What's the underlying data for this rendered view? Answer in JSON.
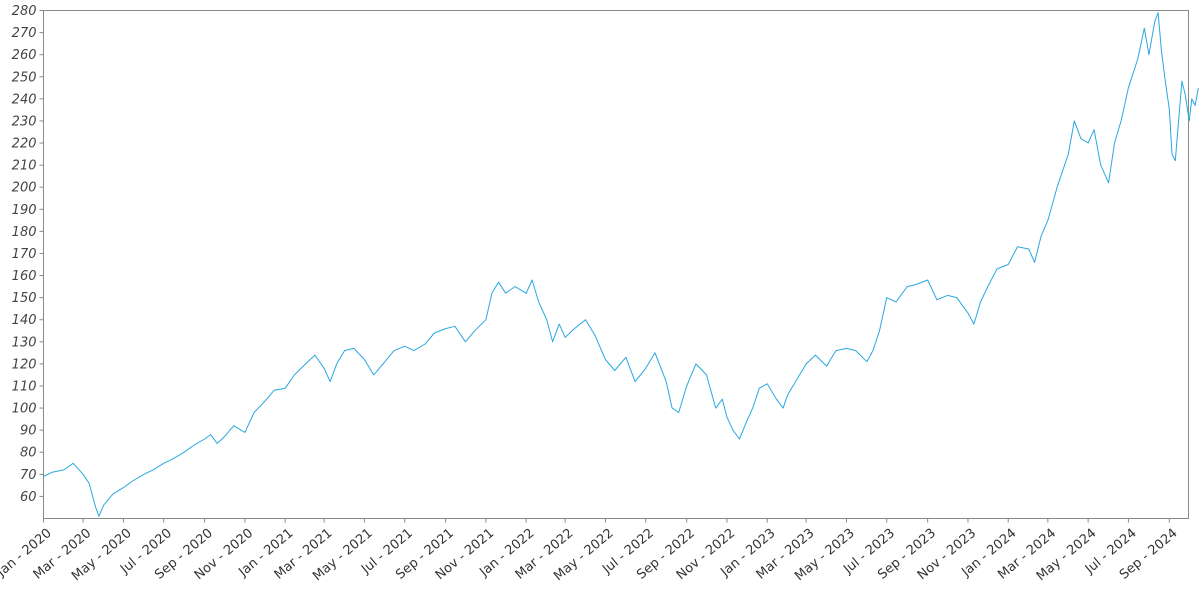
{
  "chart_data": {
    "type": "line",
    "title": "",
    "xlabel": "",
    "ylabel": "",
    "x_range": [
      "2020-01-01",
      "2024-09-30"
    ],
    "ylim": [
      50,
      280
    ],
    "grid": false,
    "series": [
      {
        "color": "#29a8e0",
        "points": [
          [
            "2020-01-01",
            69
          ],
          [
            "2020-01-15",
            71
          ],
          [
            "2020-02-01",
            72
          ],
          [
            "2020-02-15",
            75
          ],
          [
            "2020-03-01",
            70
          ],
          [
            "2020-03-10",
            66
          ],
          [
            "2020-03-20",
            55
          ],
          [
            "2020-03-25",
            51
          ],
          [
            "2020-04-01",
            56
          ],
          [
            "2020-04-15",
            61
          ],
          [
            "2020-05-01",
            64
          ],
          [
            "2020-05-15",
            67
          ],
          [
            "2020-06-01",
            70
          ],
          [
            "2020-06-15",
            72
          ],
          [
            "2020-07-01",
            75
          ],
          [
            "2020-07-15",
            77
          ],
          [
            "2020-08-01",
            80
          ],
          [
            "2020-08-15",
            83
          ],
          [
            "2020-09-01",
            86
          ],
          [
            "2020-09-10",
            88
          ],
          [
            "2020-09-20",
            84
          ],
          [
            "2020-10-01",
            87
          ],
          [
            "2020-10-15",
            92
          ],
          [
            "2020-11-01",
            89
          ],
          [
            "2020-11-15",
            98
          ],
          [
            "2020-12-01",
            103
          ],
          [
            "2020-12-15",
            108
          ],
          [
            "2021-01-01",
            109
          ],
          [
            "2021-01-15",
            115
          ],
          [
            "2021-02-01",
            120
          ],
          [
            "2021-02-15",
            124
          ],
          [
            "2021-03-01",
            118
          ],
          [
            "2021-03-10",
            112
          ],
          [
            "2021-03-20",
            120
          ],
          [
            "2021-04-01",
            126
          ],
          [
            "2021-04-15",
            127
          ],
          [
            "2021-05-01",
            122
          ],
          [
            "2021-05-15",
            115
          ],
          [
            "2021-06-01",
            121
          ],
          [
            "2021-06-15",
            126
          ],
          [
            "2021-07-01",
            128
          ],
          [
            "2021-07-15",
            126
          ],
          [
            "2021-08-01",
            129
          ],
          [
            "2021-08-15",
            134
          ],
          [
            "2021-09-01",
            136
          ],
          [
            "2021-09-15",
            137
          ],
          [
            "2021-10-01",
            130
          ],
          [
            "2021-10-15",
            135
          ],
          [
            "2021-11-01",
            140
          ],
          [
            "2021-11-10",
            152
          ],
          [
            "2021-11-20",
            157
          ],
          [
            "2021-12-01",
            152
          ],
          [
            "2021-12-15",
            155
          ],
          [
            "2022-01-01",
            152
          ],
          [
            "2022-01-10",
            158
          ],
          [
            "2022-01-20",
            148
          ],
          [
            "2022-02-01",
            140
          ],
          [
            "2022-02-10",
            130
          ],
          [
            "2022-02-20",
            138
          ],
          [
            "2022-03-01",
            132
          ],
          [
            "2022-03-15",
            136
          ],
          [
            "2022-04-01",
            140
          ],
          [
            "2022-04-15",
            133
          ],
          [
            "2022-05-01",
            122
          ],
          [
            "2022-05-15",
            117
          ],
          [
            "2022-06-01",
            123
          ],
          [
            "2022-06-15",
            112
          ],
          [
            "2022-07-01",
            118
          ],
          [
            "2022-07-15",
            125
          ],
          [
            "2022-08-01",
            112
          ],
          [
            "2022-08-10",
            100
          ],
          [
            "2022-08-20",
            98
          ],
          [
            "2022-09-01",
            110
          ],
          [
            "2022-09-15",
            120
          ],
          [
            "2022-10-01",
            115
          ],
          [
            "2022-10-15",
            100
          ],
          [
            "2022-10-25",
            104
          ],
          [
            "2022-11-01",
            96
          ],
          [
            "2022-11-10",
            90
          ],
          [
            "2022-11-20",
            86
          ],
          [
            "2022-12-01",
            94
          ],
          [
            "2022-12-10",
            100
          ],
          [
            "2022-12-20",
            109
          ],
          [
            "2023-01-01",
            111
          ],
          [
            "2023-01-15",
            104
          ],
          [
            "2023-01-25",
            100
          ],
          [
            "2023-02-01",
            106
          ],
          [
            "2023-02-15",
            113
          ],
          [
            "2023-03-01",
            120
          ],
          [
            "2023-03-15",
            124
          ],
          [
            "2023-04-01",
            119
          ],
          [
            "2023-04-15",
            126
          ],
          [
            "2023-05-01",
            127
          ],
          [
            "2023-05-15",
            126
          ],
          [
            "2023-06-01",
            121
          ],
          [
            "2023-06-10",
            126
          ],
          [
            "2023-06-20",
            135
          ],
          [
            "2023-07-01",
            150
          ],
          [
            "2023-07-15",
            148
          ],
          [
            "2023-08-01",
            155
          ],
          [
            "2023-08-15",
            156
          ],
          [
            "2023-09-01",
            158
          ],
          [
            "2023-09-15",
            149
          ],
          [
            "2023-10-01",
            151
          ],
          [
            "2023-10-15",
            150
          ],
          [
            "2023-11-01",
            143
          ],
          [
            "2023-11-10",
            138
          ],
          [
            "2023-11-20",
            148
          ],
          [
            "2023-12-01",
            155
          ],
          [
            "2023-12-15",
            163
          ],
          [
            "2024-01-01",
            165
          ],
          [
            "2024-01-15",
            173
          ],
          [
            "2024-02-01",
            172
          ],
          [
            "2024-02-10",
            166
          ],
          [
            "2024-02-20",
            178
          ],
          [
            "2024-03-01",
            185
          ],
          [
            "2024-03-15",
            200
          ],
          [
            "2024-04-01",
            215
          ],
          [
            "2024-04-10",
            230
          ],
          [
            "2024-04-20",
            222
          ],
          [
            "2024-05-01",
            220
          ],
          [
            "2024-05-10",
            226
          ],
          [
            "2024-05-20",
            210
          ],
          [
            "2024-06-01",
            202
          ],
          [
            "2024-06-10",
            220
          ],
          [
            "2024-06-20",
            230
          ],
          [
            "2024-07-01",
            245
          ],
          [
            "2024-07-15",
            258
          ],
          [
            "2024-07-25",
            272
          ],
          [
            "2024-08-01",
            260
          ],
          [
            "2024-08-10",
            275
          ],
          [
            "2024-08-15",
            279
          ],
          [
            "2024-08-20",
            262
          ],
          [
            "2024-08-25",
            250
          ],
          [
            "2024-09-01",
            235
          ],
          [
            "2024-09-05",
            215
          ],
          [
            "2024-09-10",
            212
          ],
          [
            "2024-09-15",
            230
          ],
          [
            "2024-09-20",
            248
          ],
          [
            "2024-09-25",
            242
          ],
          [
            "2024-10-01",
            230
          ],
          [
            "2024-10-05",
            240
          ],
          [
            "2024-10-10",
            237
          ],
          [
            "2024-10-15",
            245
          ]
        ]
      }
    ],
    "y_ticks": [
      60,
      70,
      80,
      90,
      100,
      110,
      120,
      130,
      140,
      150,
      160,
      170,
      180,
      190,
      200,
      210,
      220,
      230,
      240,
      250,
      260,
      270,
      280
    ],
    "x_ticks": [
      {
        "label": "Jan - 2020",
        "date": "2020-01-01"
      },
      {
        "label": "Mar - 2020",
        "date": "2020-03-01"
      },
      {
        "label": "May - 2020",
        "date": "2020-05-01"
      },
      {
        "label": "Jul - 2020",
        "date": "2020-07-01"
      },
      {
        "label": "Sep - 2020",
        "date": "2020-09-01"
      },
      {
        "label": "Nov - 2020",
        "date": "2020-11-01"
      },
      {
        "label": "Jan - 2021",
        "date": "2021-01-01"
      },
      {
        "label": "Mar - 2021",
        "date": "2021-03-01"
      },
      {
        "label": "May - 2021",
        "date": "2021-05-01"
      },
      {
        "label": "Jul - 2021",
        "date": "2021-07-01"
      },
      {
        "label": "Sep - 2021",
        "date": "2021-09-01"
      },
      {
        "label": "Nov - 2021",
        "date": "2021-11-01"
      },
      {
        "label": "Jan - 2022",
        "date": "2022-01-01"
      },
      {
        "label": "Mar - 2022",
        "date": "2022-03-01"
      },
      {
        "label": "May - 2022",
        "date": "2022-05-01"
      },
      {
        "label": "Jul - 2022",
        "date": "2022-07-01"
      },
      {
        "label": "Sep - 2022",
        "date": "2022-09-01"
      },
      {
        "label": "Nov - 2022",
        "date": "2022-11-01"
      },
      {
        "label": "Jan - 2023",
        "date": "2023-01-01"
      },
      {
        "label": "Mar - 2023",
        "date": "2023-03-01"
      },
      {
        "label": "May - 2023",
        "date": "2023-05-01"
      },
      {
        "label": "Jul - 2023",
        "date": "2023-07-01"
      },
      {
        "label": "Sep - 2023",
        "date": "2023-09-01"
      },
      {
        "label": "Nov - 2023",
        "date": "2023-11-01"
      },
      {
        "label": "Jan - 2024",
        "date": "2024-01-01"
      },
      {
        "label": "Mar - 2024",
        "date": "2024-03-01"
      },
      {
        "label": "May - 2024",
        "date": "2024-05-01"
      },
      {
        "label": "Jul - 2024",
        "date": "2024-07-01"
      },
      {
        "label": "Sep - 2024",
        "date": "2024-09-01"
      }
    ]
  }
}
